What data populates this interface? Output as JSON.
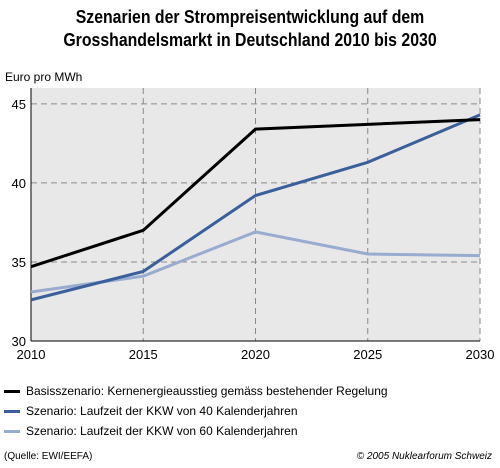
{
  "chart_data": {
    "type": "line",
    "title_lines": [
      "Szenarien der Strompreisentwicklung auf dem",
      "Grosshandelsmarkt in Deutschland 2010 bis 2030"
    ],
    "ylabel": "Euro pro MWh",
    "x": [
      2010,
      2015,
      2020,
      2025,
      2030
    ],
    "xlim": [
      2010,
      2030
    ],
    "ylim": [
      30,
      46
    ],
    "yticks": [
      30,
      35,
      40,
      45
    ],
    "grid": true,
    "legend_position": "bottom",
    "series": [
      {
        "name": "Basisszenario: Kernenergieausstieg gemäss bestehender Regelung",
        "color": "#000000",
        "values": [
          34.7,
          37.0,
          43.4,
          43.7,
          44.0
        ]
      },
      {
        "name": "Szenario: Laufzeit der KKW von 40 Kalenderjahren",
        "color": "#3a5f9b",
        "values": [
          32.6,
          34.4,
          39.2,
          41.3,
          44.3
        ]
      },
      {
        "name": "Szenario: Laufzeit der KKW von 60 Kalenderjahren",
        "color": "#98acd0",
        "values": [
          33.1,
          34.1,
          36.9,
          35.5,
          35.4
        ]
      }
    ]
  },
  "footer": {
    "source": "(Quelle: EWI/EEFA)",
    "copyright": "© 2005 Nuklearforum Schweiz"
  }
}
